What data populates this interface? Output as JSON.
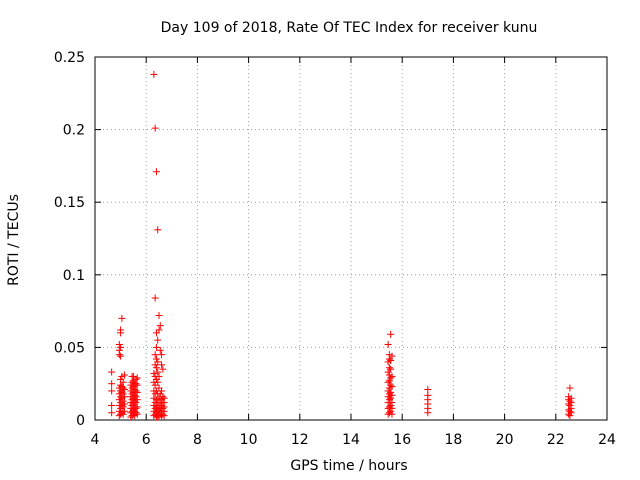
{
  "chart_data": {
    "type": "scatter",
    "title": "Day 109 of 2018, Rate Of TEC Index for receiver kunu",
    "xlabel": "GPS time / hours",
    "ylabel": "ROTI / TECUs",
    "xlim": [
      4,
      24
    ],
    "ylim": [
      0,
      0.25
    ],
    "xticks": [
      "4",
      "6",
      "8",
      "10",
      "12",
      "14",
      "16",
      "18",
      "20",
      "22",
      "24"
    ],
    "yticks": [
      "0",
      "0.05",
      "0.1",
      "0.15",
      "0.2",
      "0.25"
    ],
    "grid": true,
    "marker": "+",
    "color": "#ff0000",
    "series": [
      {
        "x": [
          4.65,
          4.65,
          4.65,
          4.65,
          4.65,
          4.95,
          4.95,
          4.95,
          4.95,
          4.95,
          4.95,
          4.95,
          4.95,
          4.95,
          5.0,
          5.0,
          5.0,
          5.0,
          5.0,
          5.0,
          5.0,
          5.0,
          5.0,
          5.0,
          5.0,
          5.05,
          5.05,
          5.05,
          5.05,
          5.05,
          5.05,
          5.05,
          5.1,
          5.1,
          5.1,
          5.1,
          5.1,
          5.1,
          5.15,
          5.15,
          5.15,
          5.15,
          5.15,
          5.4,
          5.4,
          5.4,
          5.4,
          5.4,
          5.4,
          5.4,
          5.45,
          5.45,
          5.45,
          5.45,
          5.45,
          5.45,
          5.45,
          5.45,
          5.5,
          5.5,
          5.5,
          5.5,
          5.5,
          5.5,
          5.5,
          5.5,
          5.55,
          5.55,
          5.55,
          5.55,
          5.55,
          5.55,
          5.55,
          5.6,
          5.6,
          5.6,
          5.6,
          5.6,
          5.6,
          5.6,
          5.65,
          5.65,
          5.65,
          5.65,
          5.65,
          5.65,
          6.3,
          6.3,
          6.3,
          6.3,
          6.3,
          6.3,
          6.3,
          6.3,
          6.35,
          6.35,
          6.35,
          6.35,
          6.35,
          6.35,
          6.35,
          6.35,
          6.35,
          6.35,
          6.4,
          6.4,
          6.4,
          6.4,
          6.4,
          6.4,
          6.4,
          6.4,
          6.4,
          6.4,
          6.4,
          6.45,
          6.45,
          6.45,
          6.45,
          6.45,
          6.45,
          6.45,
          6.45,
          6.45,
          6.5,
          6.5,
          6.5,
          6.5,
          6.5,
          6.5,
          6.5,
          6.5,
          6.55,
          6.55,
          6.55,
          6.55,
          6.55,
          6.55,
          6.6,
          6.6,
          6.6,
          6.6,
          6.6,
          6.6,
          6.6,
          6.65,
          6.65,
          6.65,
          6.65,
          6.65,
          6.7,
          6.7,
          6.7,
          6.7,
          6.7,
          15.45,
          15.45,
          15.45,
          15.45,
          15.45,
          15.45,
          15.45,
          15.45,
          15.45,
          15.5,
          15.5,
          15.5,
          15.5,
          15.5,
          15.5,
          15.5,
          15.5,
          15.5,
          15.5,
          15.55,
          15.55,
          15.55,
          15.55,
          15.55,
          15.55,
          15.55,
          15.55,
          15.55,
          15.6,
          15.6,
          15.6,
          15.6,
          15.6,
          15.6,
          15.6,
          17.0,
          17.0,
          17.0,
          17.0,
          17.0,
          17.0,
          22.5,
          22.5,
          22.5,
          22.5,
          22.5,
          22.55,
          22.55,
          22.55,
          22.55,
          22.55,
          22.6,
          22.6,
          22.6,
          22.6
        ],
        "y": [
          0.005,
          0.01,
          0.02,
          0.025,
          0.033,
          0.003,
          0.006,
          0.01,
          0.014,
          0.018,
          0.022,
          0.045,
          0.048,
          0.052,
          0.004,
          0.008,
          0.012,
          0.016,
          0.02,
          0.024,
          0.028,
          0.044,
          0.05,
          0.06,
          0.062,
          0.005,
          0.01,
          0.015,
          0.019,
          0.023,
          0.03,
          0.07,
          0.004,
          0.009,
          0.013,
          0.018,
          0.022,
          0.026,
          0.006,
          0.011,
          0.016,
          0.021,
          0.031,
          0.002,
          0.005,
          0.008,
          0.012,
          0.016,
          0.02,
          0.024,
          0.003,
          0.006,
          0.01,
          0.014,
          0.018,
          0.022,
          0.026,
          0.03,
          0.004,
          0.007,
          0.011,
          0.015,
          0.019,
          0.023,
          0.027,
          0.03,
          0.003,
          0.006,
          0.009,
          0.013,
          0.017,
          0.021,
          0.025,
          0.005,
          0.008,
          0.012,
          0.016,
          0.02,
          0.025,
          0.028,
          0.004,
          0.009,
          0.014,
          0.019,
          0.024,
          0.029,
          0.003,
          0.006,
          0.01,
          0.015,
          0.02,
          0.026,
          0.032,
          0.238,
          0.004,
          0.008,
          0.012,
          0.018,
          0.024,
          0.03,
          0.038,
          0.045,
          0.084,
          0.201,
          0.002,
          0.005,
          0.009,
          0.014,
          0.02,
          0.028,
          0.036,
          0.042,
          0.05,
          0.06,
          0.171,
          0.003,
          0.007,
          0.012,
          0.018,
          0.026,
          0.033,
          0.04,
          0.055,
          0.131,
          0.002,
          0.006,
          0.01,
          0.015,
          0.022,
          0.03,
          0.062,
          0.072,
          0.004,
          0.008,
          0.012,
          0.018,
          0.048,
          0.065,
          0.003,
          0.006,
          0.01,
          0.014,
          0.02,
          0.038,
          0.045,
          0.004,
          0.008,
          0.012,
          0.016,
          0.035,
          0.003,
          0.006,
          0.009,
          0.012,
          0.015,
          0.004,
          0.008,
          0.012,
          0.016,
          0.02,
          0.026,
          0.033,
          0.04,
          0.052,
          0.005,
          0.009,
          0.014,
          0.018,
          0.022,
          0.027,
          0.031,
          0.036,
          0.042,
          0.045,
          0.006,
          0.01,
          0.015,
          0.019,
          0.024,
          0.029,
          0.035,
          0.041,
          0.059,
          0.004,
          0.008,
          0.012,
          0.017,
          0.023,
          0.03,
          0.044,
          0.005,
          0.008,
          0.011,
          0.014,
          0.017,
          0.021,
          0.004,
          0.007,
          0.011,
          0.014,
          0.016,
          0.003,
          0.006,
          0.01,
          0.013,
          0.022,
          0.005,
          0.008,
          0.012,
          0.015
        ]
      }
    ]
  }
}
